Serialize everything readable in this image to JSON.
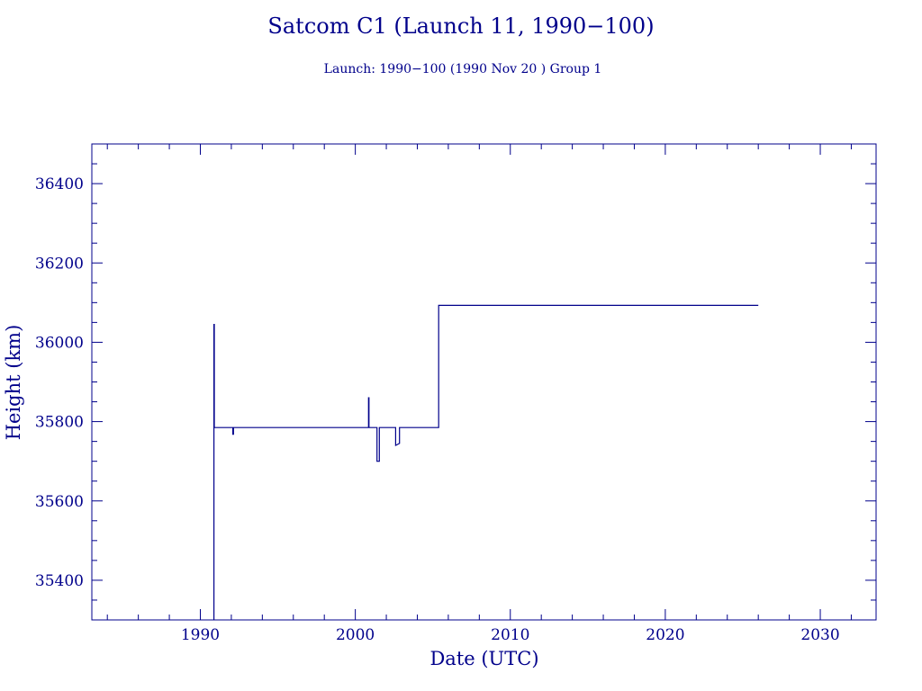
{
  "chart_data": {
    "type": "line",
    "title": "Satcom C1 (Launch 11, 1990−100)",
    "subtitle": "Launch: 1990−100  (1990 Nov 20 )  Group 1",
    "xlabel": "Date (UTC)",
    "ylabel": "Height (km)",
    "xlim": [
      1983.0,
      2033.6
    ],
    "ylim": [
      35300,
      36500
    ],
    "x_ticks": [
      1990,
      2000,
      2010,
      2020,
      2030
    ],
    "y_ticks": [
      35400,
      35600,
      35800,
      36000,
      36200,
      36400
    ],
    "grid": false,
    "color": "#00008b",
    "series": [
      {
        "x": [
          1990.88,
          1990.88,
          1990.9,
          1990.9,
          1992.1,
          1992.1,
          1992.14,
          1992.14,
          2000.85,
          2000.85,
          2000.88,
          2000.88,
          2001.4,
          2001.4,
          2001.55,
          2001.55,
          2002.6,
          2002.6,
          2002.85,
          2002.85,
          2005.38,
          2005.38,
          2026.0
        ],
        "y": [
          35300,
          36045,
          36045,
          35785,
          35785,
          35768,
          35768,
          35785,
          35785,
          35860,
          35860,
          35785,
          35785,
          35700,
          35700,
          35785,
          35785,
          35740,
          35745,
          35785,
          35785,
          36093,
          36093
        ]
      }
    ]
  }
}
